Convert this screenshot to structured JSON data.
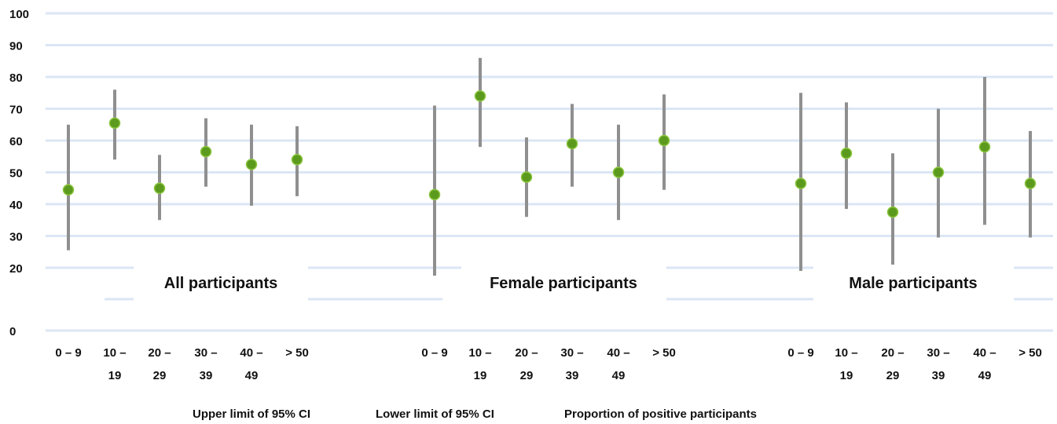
{
  "chart_data": {
    "type": "scatter",
    "subtype": "error-bar",
    "y_tick_labels": [
      "0",
      "20",
      "30",
      "40",
      "50",
      "60",
      "70",
      "80",
      "90",
      "100"
    ],
    "y_tick_values": [
      0,
      20,
      30,
      40,
      50,
      60,
      70,
      80,
      90,
      100
    ],
    "axis_break": "between 0 and 20",
    "grid": true,
    "groups": [
      {
        "label": "All participants",
        "categories": [
          [
            "0 – 9"
          ],
          [
            "10 –",
            "19"
          ],
          [
            "20 –",
            "29"
          ],
          [
            "30 –",
            "39"
          ],
          [
            "40 –",
            "49"
          ],
          [
            "> 50"
          ]
        ],
        "proportion": [
          44.5,
          65.5,
          45,
          56.5,
          52.5,
          54
        ],
        "upper": [
          65,
          76,
          55.5,
          67,
          65,
          64.5
        ],
        "lower": [
          25.5,
          54,
          35,
          45.5,
          39.5,
          42.5
        ]
      },
      {
        "label": "Female participants",
        "categories": [
          [
            "0 – 9"
          ],
          [
            "10 –",
            "19"
          ],
          [
            "20 –",
            "29"
          ],
          [
            "30 –",
            "39"
          ],
          [
            "40 –",
            "49"
          ],
          [
            "> 50"
          ]
        ],
        "proportion": [
          43,
          74,
          48.5,
          59,
          50,
          60
        ],
        "upper": [
          71,
          86,
          61,
          71.5,
          65,
          74.5
        ],
        "lower": [
          17.5,
          58,
          36,
          45.5,
          35,
          44.5
        ]
      },
      {
        "label": "Male participants",
        "categories": [
          [
            "0 – 9"
          ],
          [
            "10 –",
            "19"
          ],
          [
            "20 –",
            "29"
          ],
          [
            "30 –",
            "39"
          ],
          [
            "40 –",
            "49"
          ],
          [
            "> 50"
          ]
        ],
        "proportion": [
          46.5,
          56,
          37.5,
          50,
          58,
          46.5
        ],
        "upper": [
          75,
          72,
          56,
          70,
          80,
          63
        ],
        "lower": [
          19,
          38.5,
          21,
          29.5,
          33.5,
          29.5
        ]
      }
    ],
    "legend": {
      "placement": "bottom",
      "entries": [
        "Upper limit of 95% CI",
        "Lower limit of 95% CI",
        "Proportion of positive participants"
      ]
    },
    "colors": {
      "gridline": "#dbe6f5",
      "errorbar": "#8f8f8f",
      "point": "#5c9a1e",
      "point_highlight": "#8cc63f",
      "text": "#111111"
    }
  }
}
